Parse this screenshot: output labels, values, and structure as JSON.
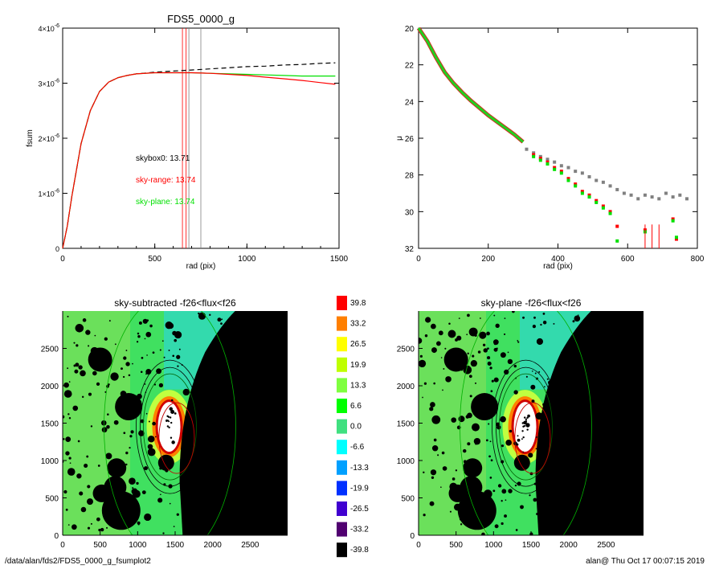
{
  "footer": {
    "left": "/data/alan/fds2/FDS5_0000_g_fsumplot2",
    "right": "alan@  Thu Oct 17 00:07:15 2019"
  },
  "colors": {
    "black": "#000000",
    "red": "#ff0000",
    "green": "#00e000",
    "gray": "#808080",
    "dashed": "#000000"
  },
  "chart_data": [
    {
      "type": "line",
      "title": "FDS5_0000_g",
      "xlabel": "rad (pix)",
      "ylabel": "fsum",
      "xlim": [
        0,
        1500
      ],
      "ylim": [
        0,
        4e-06
      ],
      "xticks": [
        0,
        500,
        1000,
        1500
      ],
      "yticks": [
        {
          "v": 0,
          "label": "0"
        },
        {
          "v": 1e-06,
          "label": "1×10",
          "exp": "-6"
        },
        {
          "v": 2e-06,
          "label": "2×10",
          "exp": "-6"
        },
        {
          "v": 3e-06,
          "label": "3×10",
          "exp": "-6"
        },
        {
          "v": 4e-06,
          "label": "4×10",
          "exp": "-6"
        }
      ],
      "annotations": [
        {
          "text": "skybox0: 13.71",
          "color": "#000000"
        },
        {
          "text": "sky-range: 13.74",
          "color": "#ff0000"
        },
        {
          "text": "sky-plane: 13.74",
          "color": "#00e000"
        }
      ],
      "vlines": [
        {
          "x": 650,
          "color": "#ff0000"
        },
        {
          "x": 670,
          "color": "#ff0000"
        },
        {
          "x": 685,
          "color": "#808080"
        },
        {
          "x": 750,
          "color": "#808080"
        }
      ],
      "series": [
        {
          "color": "#000000",
          "dash": true,
          "x": [
            0,
            25,
            50,
            100,
            150,
            200,
            250,
            300,
            350,
            400,
            500,
            600,
            700,
            800,
            900,
            1000,
            1100,
            1200,
            1300,
            1400,
            1480
          ],
          "y": [
            0,
            4e-07,
            9.5e-07,
            1.9e-06,
            2.5e-06,
            2.85e-06,
            3.02e-06,
            3.1e-06,
            3.14e-06,
            3.17e-06,
            3.2e-06,
            3.22e-06,
            3.24e-06,
            3.26e-06,
            3.28e-06,
            3.3e-06,
            3.31e-06,
            3.33e-06,
            3.34e-06,
            3.36e-06,
            3.37e-06
          ]
        },
        {
          "color": "#00e000",
          "dash": false,
          "x": [
            0,
            25,
            50,
            100,
            150,
            200,
            250,
            300,
            350,
            400,
            500,
            600,
            700,
            800,
            900,
            1000,
            1100,
            1200,
            1300,
            1400,
            1480
          ],
          "y": [
            0,
            4e-07,
            9.5e-07,
            1.9e-06,
            2.5e-06,
            2.85e-06,
            3.02e-06,
            3.1e-06,
            3.14e-06,
            3.17e-06,
            3.19e-06,
            3.19e-06,
            3.19e-06,
            3.18e-06,
            3.17e-06,
            3.16e-06,
            3.15e-06,
            3.14e-06,
            3.13e-06,
            3.13e-06,
            3.13e-06
          ]
        },
        {
          "color": "#ff0000",
          "dash": false,
          "x": [
            0,
            25,
            50,
            100,
            150,
            200,
            250,
            300,
            350,
            400,
            500,
            600,
            700,
            800,
            900,
            1000,
            1100,
            1200,
            1300,
            1400,
            1480
          ],
          "y": [
            0,
            4e-07,
            9.5e-07,
            1.9e-06,
            2.5e-06,
            2.85e-06,
            3.02e-06,
            3.1e-06,
            3.14e-06,
            3.17e-06,
            3.19e-06,
            3.19e-06,
            3.19e-06,
            3.18e-06,
            3.16e-06,
            3.14e-06,
            3.11e-06,
            3.08e-06,
            3.05e-06,
            3.01e-06,
            2.98e-06
          ]
        }
      ]
    },
    {
      "type": "scatter",
      "title": "",
      "xlabel": "rad (pix)",
      "ylabel": "μ",
      "xlim": [
        0,
        800
      ],
      "ylim": [
        32,
        20
      ],
      "xticks": [
        0,
        200,
        400,
        600,
        800
      ],
      "yticks": [
        20,
        22,
        24,
        26,
        28,
        30,
        32
      ],
      "series": [
        {
          "color": "#808080",
          "marker": "square",
          "x": [
            310,
            330,
            350,
            370,
            390,
            410,
            430,
            450,
            470,
            490,
            510,
            530,
            550,
            570,
            590,
            610,
            630,
            650,
            670,
            690,
            710,
            730,
            750,
            770
          ],
          "y": [
            26.6,
            26.8,
            27.0,
            27.15,
            27.3,
            27.5,
            27.6,
            27.8,
            27.9,
            28.1,
            28.3,
            28.4,
            28.6,
            28.8,
            29.0,
            29.1,
            29.3,
            29.1,
            29.2,
            29.3,
            29.0,
            29.2,
            29.1,
            29.3
          ]
        },
        {
          "color": "#ff0000",
          "marker": "square",
          "x": [
            330,
            350,
            370,
            390,
            410,
            430,
            450,
            470,
            490,
            510,
            530,
            550,
            570,
            650,
            730,
            740
          ],
          "y": [
            26.9,
            27.1,
            27.3,
            27.6,
            27.8,
            28.2,
            28.5,
            28.9,
            29.1,
            29.4,
            29.7,
            30.0,
            30.8,
            31.0,
            30.4,
            31.5
          ]
        },
        {
          "color": "#00e000",
          "marker": "square",
          "x": [
            330,
            350,
            370,
            390,
            410,
            430,
            450,
            470,
            490,
            510,
            530,
            550,
            570,
            650,
            730,
            740
          ],
          "y": [
            27.0,
            27.2,
            27.4,
            27.7,
            27.9,
            28.3,
            28.6,
            29.0,
            29.2,
            29.5,
            29.8,
            30.1,
            31.6,
            31.1,
            30.5,
            31.4
          ]
        }
      ],
      "profile": {
        "x": [
          0,
          25,
          50,
          75,
          100,
          125,
          150,
          175,
          200,
          225,
          250,
          275,
          300
        ],
        "y": [
          20.0,
          20.7,
          21.6,
          22.4,
          23.0,
          23.5,
          23.95,
          24.35,
          24.75,
          25.1,
          25.45,
          25.8,
          26.2
        ]
      },
      "errorbars_x": [
        650,
        670,
        690
      ]
    },
    {
      "type": "heatmap",
      "title": "sky-subtracted -f26<flux<f26",
      "xticks": [
        0,
        500,
        1000,
        1500,
        2000,
        2500
      ],
      "yticks": [
        0,
        500,
        1000,
        1500,
        2000,
        2500
      ],
      "xlim": [
        0,
        3000
      ],
      "ylim": [
        0,
        3000
      ]
    },
    {
      "type": "heatmap",
      "title": "sky-plane -f26<flux<f26",
      "xticks": [
        0,
        500,
        1000,
        1500,
        2000,
        2500
      ],
      "yticks": [
        0,
        500,
        1000,
        1500,
        2000,
        2500
      ],
      "xlim": [
        0,
        3000
      ],
      "ylim": [
        0,
        3000
      ]
    }
  ],
  "colorbar": {
    "levels": [
      {
        "label": "39.8",
        "color": "#ff0000"
      },
      {
        "label": "33.2",
        "color": "#ff7f00"
      },
      {
        "label": "26.5",
        "color": "#ffff00"
      },
      {
        "label": "19.9",
        "color": "#bfff00"
      },
      {
        "label": "13.3",
        "color": "#7fff3f"
      },
      {
        "label": "6.6",
        "color": "#00ff00"
      },
      {
        "label": "0.0",
        "color": "#40e080"
      },
      {
        "label": "-6.6",
        "color": "#00ffff"
      },
      {
        "label": "-13.3",
        "color": "#00a0ff"
      },
      {
        "label": "-19.9",
        "color": "#0030ff"
      },
      {
        "label": "-26.5",
        "color": "#4000d0"
      },
      {
        "label": "-33.2",
        "color": "#500070"
      },
      {
        "label": "-39.8",
        "color": "#000000"
      }
    ]
  }
}
